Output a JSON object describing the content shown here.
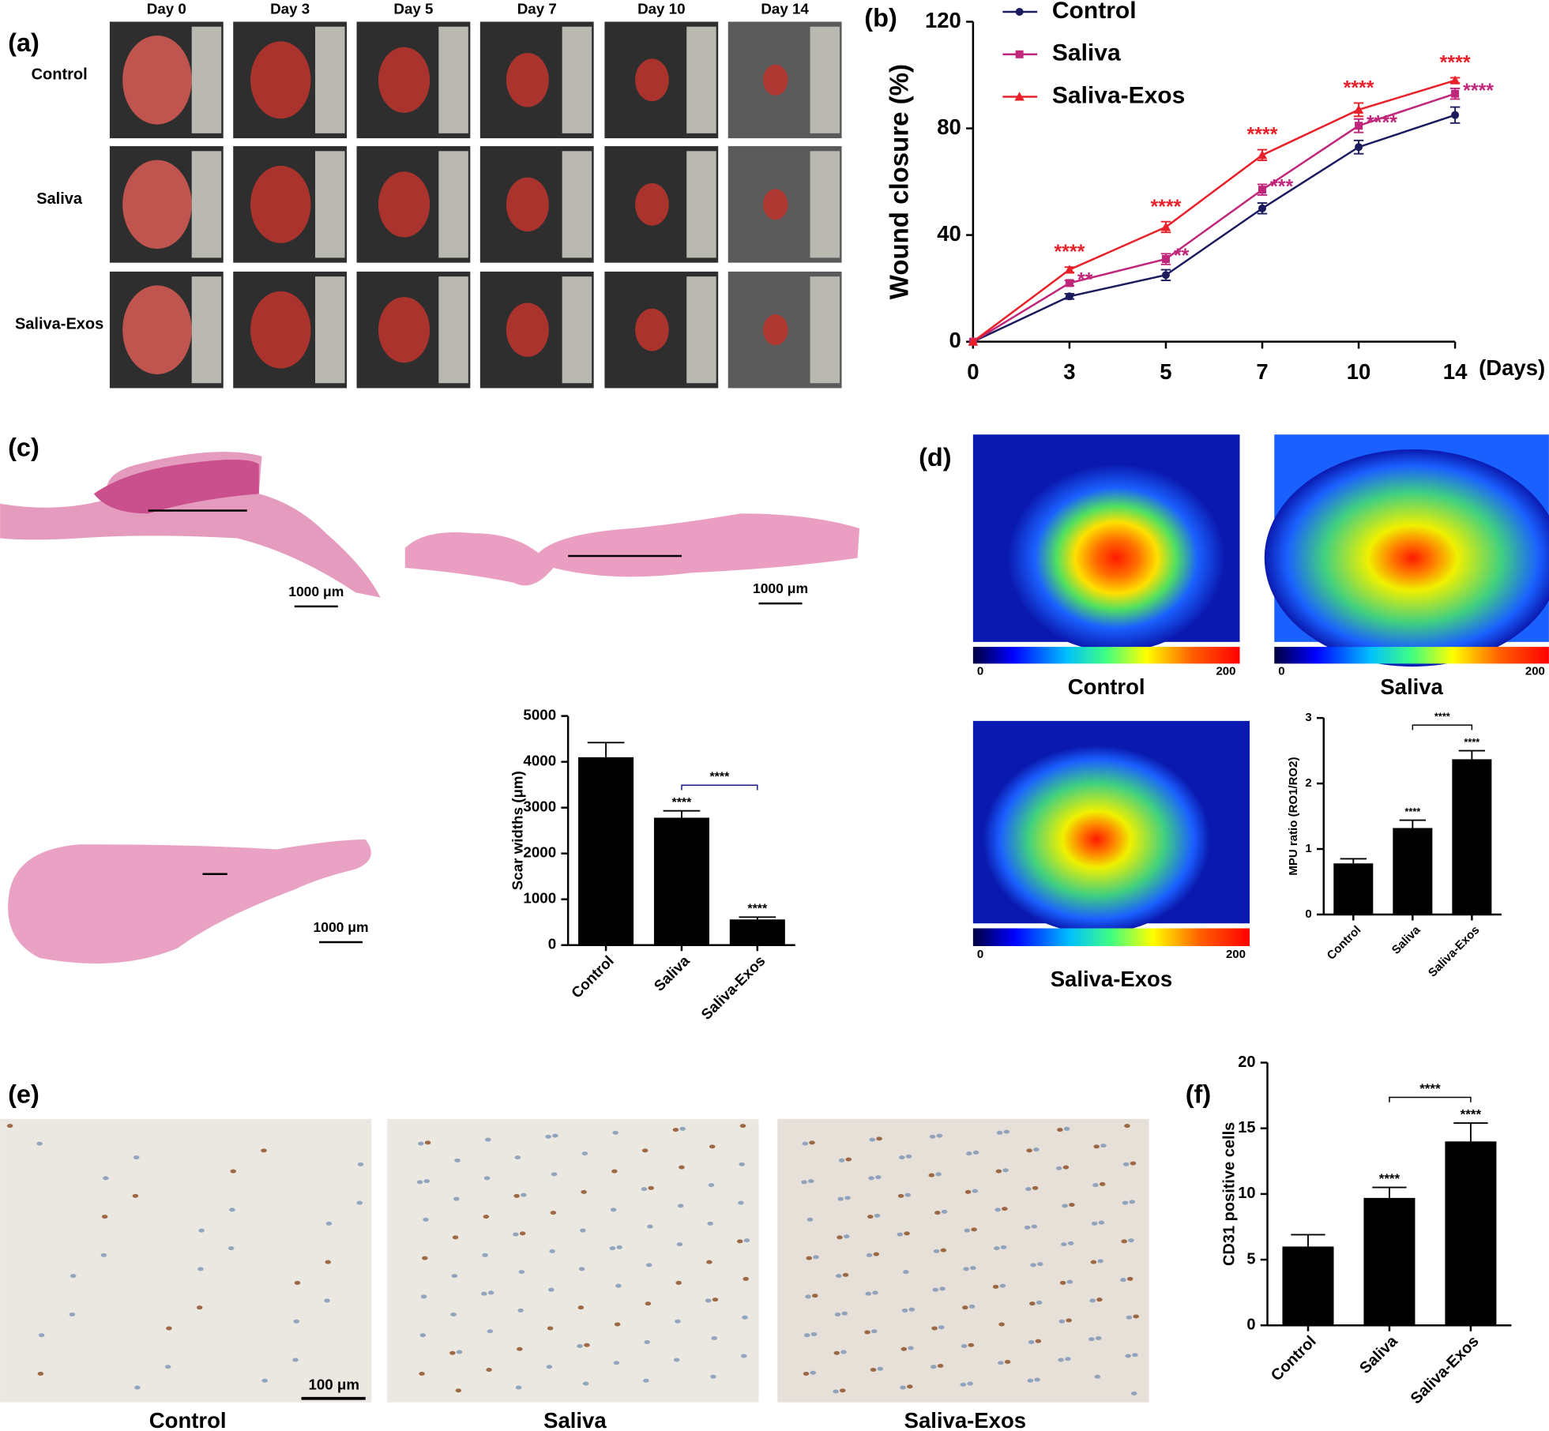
{
  "figure": {
    "panel_a": {
      "label": "(a)",
      "days": [
        "Day 0",
        "Day 3",
        "Day 5",
        "Day 7",
        "Day 10",
        "Day 14"
      ],
      "groups": [
        "Control",
        "Saliva",
        "Saliva-Exos"
      ]
    },
    "panel_c": {
      "label": "(c)",
      "scale_bars": [
        "1000 μm",
        "1000 μm",
        "1000 μm"
      ]
    },
    "panel_d": {
      "label": "(d)",
      "images": [
        {
          "name": "Control",
          "scale_min": 0,
          "scale_max": 200
        },
        {
          "name": "Saliva",
          "scale_min": 0,
          "scale_max": 200
        },
        {
          "name": "Saliva-Exos",
          "scale_min": 0,
          "scale_max": 200
        }
      ]
    },
    "panel_e": {
      "label": "(e)",
      "images": [
        "Control",
        "Saliva",
        "Saliva-Exos"
      ],
      "scale_bar": "100 μm"
    }
  },
  "chart_data": [
    {
      "type": "line",
      "panel_label": "(b)",
      "x_label": "(Days)",
      "y_label": "Wound closure (%)",
      "categories": [
        "0",
        "3",
        "5",
        "7",
        "10",
        "14"
      ],
      "ylim": [
        0,
        120
      ],
      "yticks": [
        0,
        40,
        80,
        120
      ],
      "series": [
        {
          "name": "Control",
          "color": "#1b1b5e",
          "marker": "circle",
          "values": [
            0,
            17,
            25,
            50,
            73,
            85
          ],
          "errors": [
            0,
            1,
            2,
            2,
            2.5,
            3
          ],
          "significance": [
            null,
            null,
            null,
            null,
            null,
            null
          ]
        },
        {
          "name": "Saliva",
          "color": "#c0267a",
          "marker": "square",
          "values": [
            0,
            22,
            31,
            57,
            81,
            93
          ],
          "errors": [
            0,
            1,
            2,
            2,
            2.5,
            2
          ],
          "significance": [
            null,
            "**",
            "**",
            "***",
            "****",
            "****"
          ]
        },
        {
          "name": "Saliva-Exos",
          "color": "#e8202a",
          "marker": "triangle",
          "values": [
            0,
            27,
            43,
            70,
            87,
            98
          ],
          "errors": [
            0,
            1,
            2,
            2,
            2.5,
            1
          ],
          "significance": [
            null,
            "****",
            "****",
            "****",
            "****",
            "****"
          ]
        }
      ]
    },
    {
      "type": "bar",
      "y_label": "Scar widths (μm)",
      "categories": [
        "Control",
        "Saliva",
        "Saliva-Exos"
      ],
      "values": [
        4100,
        2780,
        560
      ],
      "errors": [
        320,
        150,
        50
      ],
      "significance": [
        null,
        "****",
        "****"
      ],
      "comparison_label": "****",
      "color": "#000000",
      "ylim": [
        0,
        5000
      ],
      "yticks": [
        0,
        1000,
        2000,
        3000,
        4000,
        5000
      ]
    },
    {
      "type": "bar",
      "y_label": "MPU ratio (RO1/RO2)",
      "categories": [
        "Control",
        "Saliva",
        "Saliva-Exos"
      ],
      "values": [
        0.78,
        1.32,
        2.37
      ],
      "errors": [
        0.07,
        0.12,
        0.13
      ],
      "significance": [
        null,
        "****",
        "****"
      ],
      "comparison_label": "****",
      "color": "#000000",
      "ylim": [
        0,
        3
      ],
      "yticks": [
        0,
        1,
        2,
        3
      ]
    },
    {
      "type": "bar",
      "panel_label": "(f)",
      "y_label": "CD31 positive cells",
      "categories": [
        "Control",
        "Saliva",
        "Saliva-Exos"
      ],
      "values": [
        6,
        9.7,
        14
      ],
      "errors": [
        0.9,
        0.8,
        1.4
      ],
      "significance": [
        null,
        "****",
        "****"
      ],
      "comparison_label": "****",
      "color": "#000000",
      "ylim": [
        0,
        20
      ],
      "yticks": [
        0,
        5,
        10,
        15,
        20
      ]
    }
  ]
}
